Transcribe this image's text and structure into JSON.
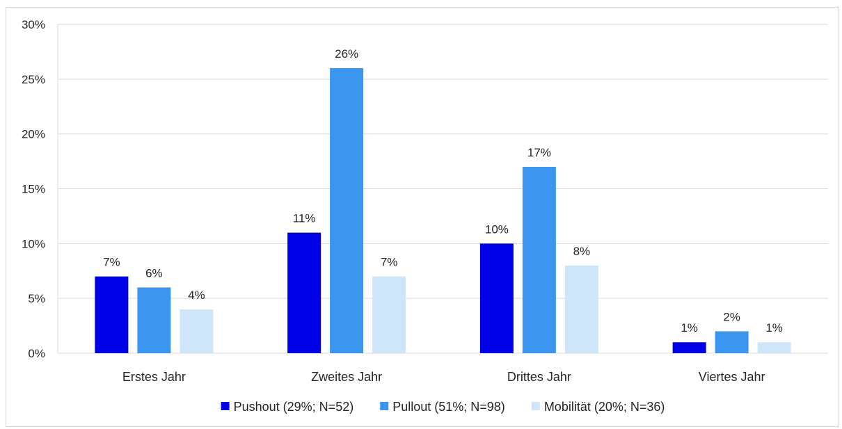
{
  "chart_data": {
    "type": "bar",
    "categories": [
      "Erstes Jahr",
      "Zweites Jahr",
      "Drittes Jahr",
      "Viertes Jahr"
    ],
    "series": [
      {
        "name": "Pushout (29%; N=52)",
        "values": [
          7,
          11,
          10,
          1
        ],
        "color": "#0000e6"
      },
      {
        "name": "Pullout (51%; N=98)",
        "values": [
          6,
          26,
          17,
          2
        ],
        "color": "#3c96f0"
      },
      {
        "name": "Mobilität (20%; N=36)",
        "values": [
          4,
          7,
          8,
          1
        ],
        "color": "#cfe6fa"
      }
    ],
    "data_labels": [
      [
        "7%",
        "11%",
        "10%",
        "1%"
      ],
      [
        "6%",
        "26%",
        "17%",
        "2%"
      ],
      [
        "4%",
        "7%",
        "8%",
        "1%"
      ]
    ],
    "y_ticks": [
      0,
      5,
      10,
      15,
      20,
      25,
      30
    ],
    "y_tick_labels": [
      "0%",
      "5%",
      "10%",
      "15%",
      "20%",
      "25%",
      "30%"
    ],
    "ylim": [
      0,
      30
    ],
    "title": "",
    "xlabel": "",
    "ylabel": "",
    "grid": true,
    "legend_position": "bottom",
    "colors": {
      "gridline": "#d9d9d9",
      "text": "#262626"
    }
  }
}
